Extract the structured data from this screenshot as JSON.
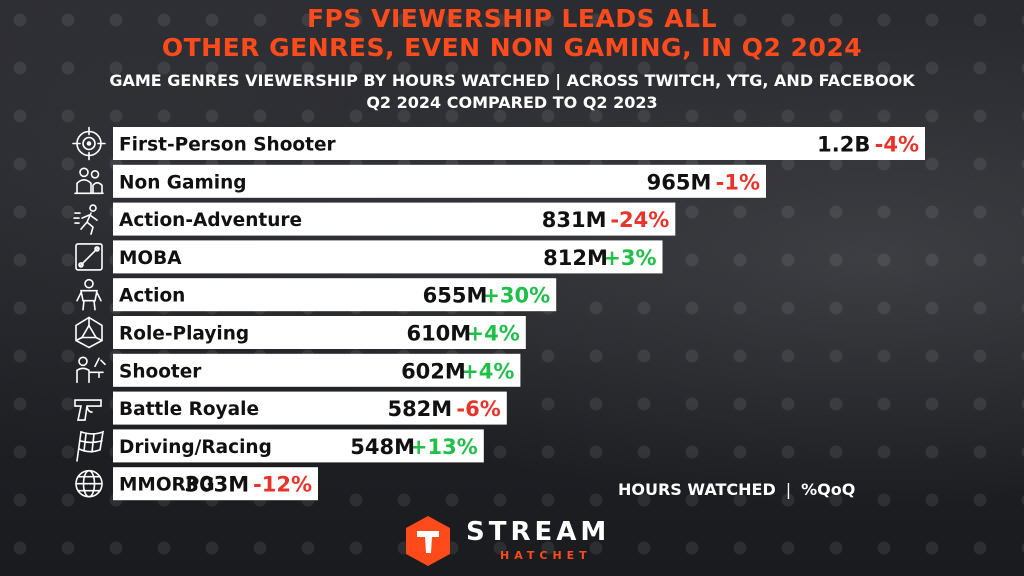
{
  "title_line1": "FPS VIEWERSHIP LEADS ALL",
  "title_line2": "OTHER GENRES, EVEN NON GAMING, IN Q2 2024",
  "subtitle_line1": "GAME GENRES VIEWERSHIP BY HOURS WATCHED | ACROSS TWITCH, YTG, AND FACEBOOK",
  "subtitle_line2": "Q2 2024 COMPARED TO Q2 2023",
  "legend": {
    "hours": "HOURS WATCHED",
    "separator": "|",
    "qoq": "%QoQ"
  },
  "logo": {
    "brand": "STREAM",
    "sub": "HATCHET"
  },
  "colors": {
    "title": "#ff4a1c",
    "negative": "#e8332b",
    "positive": "#1fbf4a",
    "bar": "#ffffff",
    "text": "#111111"
  },
  "chart_data": {
    "type": "bar",
    "orientation": "horizontal",
    "categories": [
      "First-Person Shooter",
      "Non Gaming",
      "Action-Adventure",
      "MOBA",
      "Action",
      "Role-Playing",
      "Shooter",
      "Battle Royale",
      "Driving/Racing",
      "MMORPG"
    ],
    "values": [
      1200000000,
      965000000,
      831000000,
      812000000,
      655000000,
      610000000,
      602000000,
      582000000,
      548000000,
      303000000
    ],
    "value_labels": [
      "1.2B",
      "965M",
      "831M",
      "812M",
      "655M",
      "610M",
      "602M",
      "582M",
      "548M",
      "303M"
    ],
    "qoq_labels": [
      "-4%",
      "-1%",
      "-24%",
      "+3%",
      "+30%",
      "+4%",
      "+4%",
      "-6%",
      "+13%",
      "-12%"
    ],
    "icons": [
      "crosshair-icon",
      "people-icon",
      "running-icon",
      "moba-map-icon",
      "soldier-icon",
      "d20-dice-icon",
      "shooter-icon",
      "pistol-icon",
      "checkered-flag-icon",
      "globe-icon"
    ],
    "title": "GAME GENRES VIEWERSHIP BY HOURS WATCHED | ACROSS TWITCH, YTG, AND FACEBOOK",
    "legend": [
      "HOURS WATCHED",
      "%QoQ"
    ]
  }
}
